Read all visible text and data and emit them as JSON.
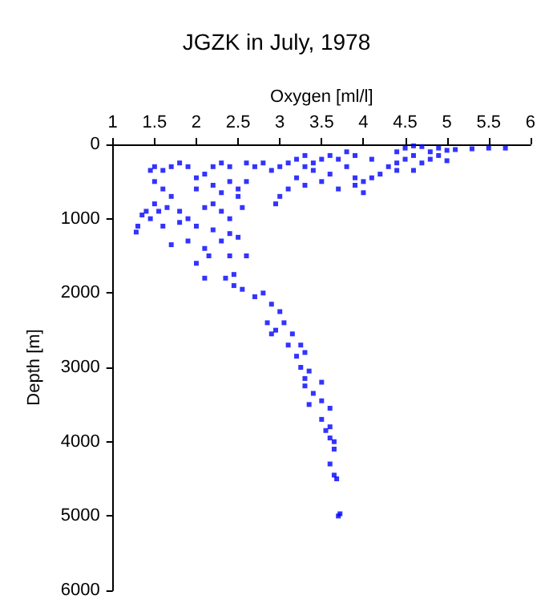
{
  "chart_data": {
    "type": "scatter",
    "title": "JGZK in July, 1978",
    "xlabel": "Oxygen [ml/l]",
    "ylabel": "Depth [m]",
    "xlim": [
      1,
      6
    ],
    "xticks": [
      1,
      1.5,
      2,
      2.5,
      3,
      3.5,
      4,
      4.5,
      5,
      5.5,
      6
    ],
    "ylim": [
      6000,
      0
    ],
    "yticks": [
      0,
      1000,
      2000,
      3000,
      4000,
      5000,
      6000
    ],
    "grid": false,
    "marker": "square",
    "x": [
      5.7,
      5.5,
      5.3,
      5.1,
      5.0,
      4.9,
      4.8,
      4.7,
      4.6,
      4.5,
      4.4,
      4.6,
      4.5,
      4.4,
      4.7,
      4.8,
      4.9,
      4.3,
      4.4,
      4.6,
      5.0,
      4.2,
      4.1,
      4.0,
      3.9,
      3.8,
      3.6,
      3.5,
      3.4,
      3.3,
      3.2,
      3.1,
      3.0,
      3.3,
      3.7,
      3.9,
      4.1,
      3.8,
      3.6,
      3.5,
      3.3,
      3.1,
      3.0,
      2.95,
      3.2,
      3.4,
      3.7,
      4.0,
      3.9,
      2.8,
      2.7,
      2.6,
      2.5,
      2.4,
      2.3,
      2.2,
      2.1,
      2.0,
      2.6,
      2.9,
      2.4,
      2.3,
      2.2,
      2.0,
      1.9,
      1.8,
      1.7,
      1.6,
      1.5,
      1.45,
      1.5,
      1.6,
      1.7,
      1.5,
      1.4,
      1.35,
      1.3,
      1.28,
      1.45,
      1.55,
      1.65,
      1.8,
      1.9,
      2.0,
      2.1,
      2.2,
      2.3,
      2.4,
      1.6,
      1.8,
      2.2,
      2.4,
      2.5,
      2.3,
      2.1,
      1.9,
      1.7,
      2.15,
      2.5,
      2.55,
      2.4,
      2.0,
      2.1,
      2.35,
      2.45,
      2.6,
      2.45,
      2.55,
      2.7,
      2.8,
      2.9,
      3.0,
      2.85,
      2.95,
      2.9,
      3.05,
      3.15,
      3.1,
      3.25,
      3.2,
      3.3,
      3.25,
      3.35,
      3.3,
      3.3,
      3.5,
      3.4,
      3.35,
      3.5,
      3.6,
      3.5,
      3.55,
      3.6,
      3.6,
      3.65,
      3.65,
      3.6,
      3.65,
      3.68,
      3.7,
      3.72
    ],
    "series": [
      {
        "color": "#0000ff",
        "values": [
          50,
          50,
          60,
          70,
          80,
          50,
          100,
          30,
          20,
          50,
          100,
          150,
          200,
          250,
          250,
          200,
          150,
          300,
          350,
          350,
          220,
          400,
          450,
          500,
          550,
          100,
          150,
          200,
          250,
          300,
          200,
          250,
          300,
          150,
          200,
          150,
          200,
          300,
          400,
          500,
          550,
          600,
          700,
          800,
          450,
          350,
          600,
          650,
          450,
          250,
          300,
          500,
          600,
          300,
          250,
          300,
          400,
          450,
          250,
          350,
          500,
          650,
          550,
          600,
          300,
          250,
          300,
          350,
          300,
          350,
          500,
          600,
          700,
          800,
          900,
          950,
          1100,
          1180,
          1000,
          900,
          850,
          900,
          1000,
          1100,
          850,
          800,
          900,
          1000,
          1100,
          1050,
          1150,
          1200,
          1250,
          1300,
          1400,
          1300,
          1350,
          1500,
          700,
          850,
          1500,
          1600,
          1800,
          1800,
          1750,
          1500,
          1900,
          1950,
          2050,
          2000,
          2150,
          2250,
          2400,
          2500,
          2550,
          2400,
          2550,
          2700,
          2700,
          2850,
          2800,
          3000,
          3050,
          3150,
          3250,
          3200,
          3350,
          3500,
          3450,
          3550,
          3700,
          3850,
          3800,
          3950,
          4000,
          4100,
          4300,
          4450,
          4500,
          5000,
          4970
        ]
      }
    ]
  }
}
